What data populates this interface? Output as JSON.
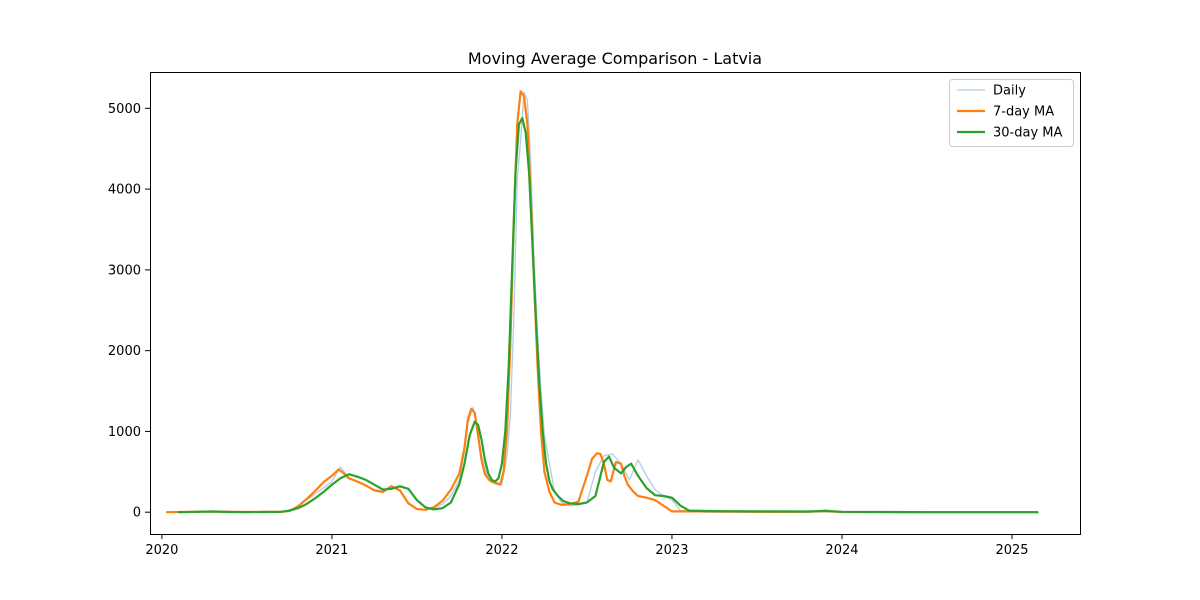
{
  "chart_data": {
    "type": "line",
    "title": "Moving Average Comparison - Latvia",
    "xlabel": "",
    "ylabel": "",
    "x_range": [
      2019.93,
      2025.4
    ],
    "xlim": [
      "2019-12-06",
      "2025-05-27"
    ],
    "ylim": [
      -270,
      5450
    ],
    "x_ticks": [
      "2020",
      "2021",
      "2022",
      "2023",
      "2024",
      "2025"
    ],
    "y_ticks": [
      "0",
      "1000",
      "2000",
      "3000",
      "4000",
      "5000"
    ],
    "grid": false,
    "legend_position": "top-right",
    "series": [
      {
        "name": "Daily",
        "color": "#aecde8",
        "x": [
          2020.03,
          2020.25,
          2020.5,
          2020.75,
          2020.85,
          2020.95,
          2021.0,
          2021.05,
          2021.1,
          2021.15,
          2021.2,
          2021.25,
          2021.3,
          2021.35,
          2021.4,
          2021.45,
          2021.5,
          2021.55,
          2021.6,
          2021.65,
          2021.7,
          2021.75,
          2021.78,
          2021.8,
          2021.83,
          2021.86,
          2021.88,
          2021.91,
          2021.95,
          2022.0,
          2022.03,
          2022.05,
          2022.07,
          2022.09,
          2022.11,
          2022.13,
          2022.15,
          2022.17,
          2022.19,
          2022.21,
          2022.23,
          2022.25,
          2022.28,
          2022.31,
          2022.35,
          2022.4,
          2022.45,
          2022.5,
          2022.55,
          2022.6,
          2022.65,
          2022.7,
          2022.75,
          2022.8,
          2022.85,
          2022.9,
          2022.95,
          2023.0,
          2023.05,
          2023.2,
          2023.5,
          2023.8,
          2023.9,
          2024.0,
          2024.5,
          2025.0,
          2025.15
        ],
        "y": [
          0,
          10,
          0,
          10,
          150,
          300,
          380,
          560,
          430,
          370,
          330,
          280,
          260,
          330,
          260,
          100,
          40,
          30,
          50,
          100,
          200,
          400,
          750,
          1100,
          1300,
          1000,
          700,
          480,
          380,
          350,
          700,
          1200,
          2400,
          4100,
          4600,
          5200,
          5100,
          4300,
          3100,
          2200,
          1500,
          950,
          600,
          250,
          120,
          80,
          90,
          120,
          500,
          700,
          720,
          600,
          400,
          650,
          450,
          280,
          200,
          150,
          20,
          0,
          0,
          0,
          30,
          0,
          0,
          0,
          0
        ]
      },
      {
        "name": "7-day MA",
        "color": "#ff7f0e",
        "x": [
          2020.03,
          2020.1,
          2020.2,
          2020.3,
          2020.4,
          2020.5,
          2020.6,
          2020.7,
          2020.75,
          2020.8,
          2020.85,
          2020.9,
          2020.95,
          2021.0,
          2021.04,
          2021.07,
          2021.1,
          2021.15,
          2021.2,
          2021.25,
          2021.3,
          2021.35,
          2021.4,
          2021.45,
          2021.5,
          2021.55,
          2021.6,
          2021.65,
          2021.7,
          2021.75,
          2021.78,
          2021.8,
          2021.82,
          2021.84,
          2021.86,
          2021.88,
          2021.9,
          2021.93,
          2021.96,
          2021.99,
          2022.01,
          2022.03,
          2022.05,
          2022.07,
          2022.09,
          2022.11,
          2022.13,
          2022.15,
          2022.17,
          2022.19,
          2022.21,
          2022.23,
          2022.25,
          2022.28,
          2022.31,
          2022.35,
          2022.4,
          2022.45,
          2022.5,
          2022.53,
          2022.56,
          2022.58,
          2022.6,
          2022.62,
          2022.64,
          2022.67,
          2022.7,
          2022.72,
          2022.74,
          2022.77,
          2022.8,
          2022.85,
          2022.9,
          2022.95,
          2023.0,
          2023.05,
          2023.2,
          2023.5,
          2023.8,
          2023.9,
          2024.0,
          2024.5,
          2025.0,
          2025.15
        ],
        "y": [
          0,
          2,
          5,
          8,
          3,
          2,
          3,
          5,
          15,
          70,
          160,
          260,
          370,
          450,
          530,
          480,
          420,
          380,
          330,
          270,
          250,
          320,
          270,
          110,
          40,
          30,
          60,
          140,
          280,
          480,
          800,
          1150,
          1280,
          1230,
          950,
          650,
          470,
          390,
          360,
          340,
          500,
          1000,
          2100,
          3600,
          4800,
          5210,
          5150,
          4800,
          3900,
          2800,
          1800,
          1000,
          500,
          250,
          120,
          90,
          100,
          130,
          450,
          660,
          730,
          720,
          600,
          400,
          380,
          620,
          600,
          450,
          340,
          260,
          200,
          180,
          150,
          80,
          10,
          10,
          10,
          5,
          5,
          15,
          2,
          0,
          0,
          0
        ]
      },
      {
        "name": "30-day MA",
        "color": "#2ca02c",
        "x": [
          2020.1,
          2020.2,
          2020.3,
          2020.4,
          2020.5,
          2020.6,
          2020.7,
          2020.75,
          2020.8,
          2020.85,
          2020.9,
          2020.95,
          2021.0,
          2021.05,
          2021.1,
          2021.15,
          2021.2,
          2021.25,
          2021.3,
          2021.35,
          2021.4,
          2021.45,
          2021.5,
          2021.55,
          2021.6,
          2021.65,
          2021.7,
          2021.75,
          2021.78,
          2021.81,
          2021.84,
          2021.86,
          2021.88,
          2021.9,
          2021.92,
          2021.94,
          2021.96,
          2021.98,
          2022.0,
          2022.02,
          2022.04,
          2022.06,
          2022.08,
          2022.1,
          2022.12,
          2022.14,
          2022.16,
          2022.18,
          2022.2,
          2022.22,
          2022.24,
          2022.26,
          2022.28,
          2022.3,
          2022.33,
          2022.36,
          2022.4,
          2022.45,
          2022.5,
          2022.55,
          2022.6,
          2022.63,
          2022.66,
          2022.7,
          2022.73,
          2022.76,
          2022.8,
          2022.85,
          2022.9,
          2022.95,
          2023.0,
          2023.05,
          2023.1,
          2023.2,
          2023.3,
          2023.5,
          2023.8,
          2023.9,
          2024.0,
          2024.5,
          2025.0,
          2025.15
        ],
        "y": [
          0,
          5,
          8,
          2,
          1,
          2,
          5,
          20,
          50,
          100,
          170,
          250,
          340,
          420,
          470,
          440,
          400,
          340,
          280,
          290,
          320,
          290,
          150,
          60,
          35,
          50,
          120,
          350,
          600,
          950,
          1120,
          1080,
          900,
          650,
          480,
          400,
          380,
          420,
          600,
          1000,
          1800,
          3000,
          4200,
          4800,
          4880,
          4700,
          4200,
          3300,
          2400,
          1600,
          1000,
          600,
          380,
          280,
          200,
          140,
          110,
          100,
          120,
          200,
          620,
          690,
          550,
          480,
          560,
          600,
          450,
          300,
          210,
          200,
          180,
          80,
          20,
          15,
          12,
          10,
          8,
          15,
          5,
          0,
          0,
          0
        ]
      }
    ]
  }
}
